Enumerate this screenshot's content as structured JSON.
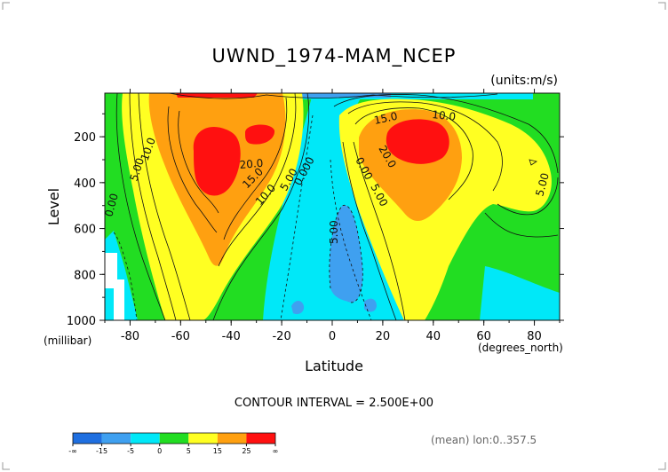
{
  "chart_data": {
    "type": "heatmap",
    "title": "UWND_1974-MAM_NCEP",
    "units_label": "(units:m/s)",
    "xlabel": "Latitude",
    "ylabel": "Level",
    "y_units_label": "(millibar)",
    "x_units_label": "(degrees_north)",
    "contour_interval_text": "CONTOUR INTERVAL = 2.500E+00",
    "footer_note": "(mean) lon:0..357.5",
    "x_ticks": [
      -80,
      -60,
      -40,
      -20,
      0,
      20,
      40,
      60,
      80
    ],
    "x_tick_labels": [
      "-80",
      "-60",
      "-40",
      "-20",
      "0",
      "20",
      "40",
      "60",
      "80"
    ],
    "y_ticks": [
      200,
      400,
      600,
      800,
      1000
    ],
    "y_tick_labels": [
      "200",
      "400",
      "600",
      "800",
      "1000"
    ],
    "xlim": [
      -90,
      90
    ],
    "ylim": [
      1000,
      10
    ],
    "y_inverted": true,
    "contour_interval": 2.5,
    "colorbar": {
      "bins": [
        {
          "min": "-inf",
          "max": -15,
          "color": "#1f6fe0"
        },
        {
          "min": -15,
          "max": -5,
          "color": "#3fa0f0"
        },
        {
          "min": -5,
          "max": 0,
          "color": "#00e8f8"
        },
        {
          "min": 0,
          "max": 5,
          "color": "#22dd22"
        },
        {
          "min": 5,
          "max": 15,
          "color": "#ffff22"
        },
        {
          "min": 15,
          "max": 25,
          "color": "#ffa010"
        },
        {
          "min": 25,
          "max": "inf",
          "color": "#ff1010"
        }
      ],
      "labels": [
        "-∞",
        "-15",
        "-5",
        "0",
        "5",
        "15",
        "25",
        "∞"
      ]
    },
    "jets": [
      {
        "lat": -53,
        "level": 250,
        "max": 27.5
      },
      {
        "lat": 30,
        "level": 170,
        "max": 27.5
      }
    ],
    "contour_labels": [
      "10.0",
      "5.00",
      "0.00",
      "20.0",
      "15.0",
      "10.0",
      "5.00",
      "0.000",
      "0.00",
      "5.00",
      "15.0",
      "10.0",
      "20.0",
      "5.00",
      "5.00"
    ]
  }
}
